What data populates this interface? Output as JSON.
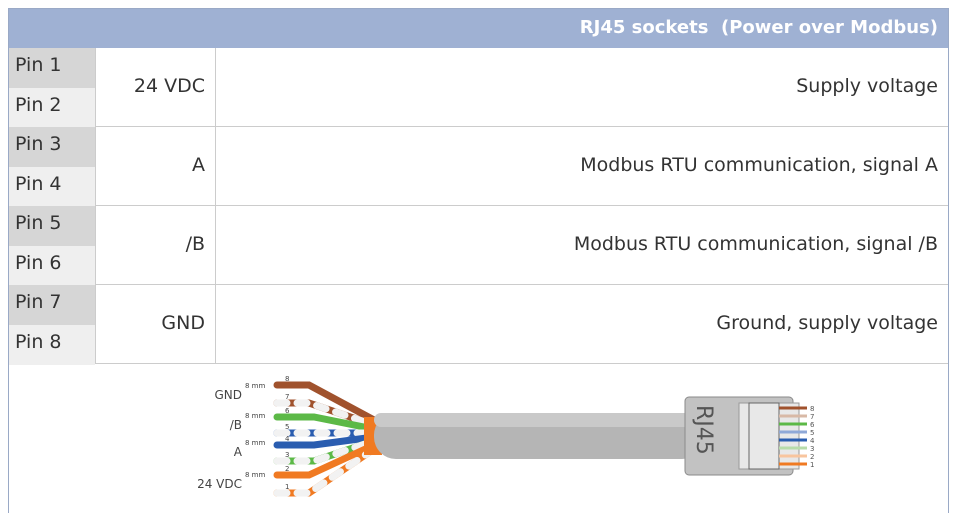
{
  "header": {
    "title": "RJ45 sockets  (Power over Modbus)"
  },
  "table": {
    "rows": [
      {
        "pins": [
          "Pin 1",
          "Pin 2"
        ],
        "signal": "24 VDC",
        "description": "Supply voltage"
      },
      {
        "pins": [
          "Pin 3",
          "Pin 4"
        ],
        "signal": "A",
        "description": "Modbus RTU communication, signal A"
      },
      {
        "pins": [
          "Pin 5",
          "Pin 6"
        ],
        "signal": "/B",
        "description": "Modbus RTU communication, signal /B"
      },
      {
        "pins": [
          "Pin 7",
          "Pin 8"
        ],
        "signal": "GND",
        "description": "Ground, supply voltage"
      }
    ]
  },
  "illustration": {
    "wire_groups": [
      {
        "label": "GND",
        "strip": "8 mm",
        "pins": [
          "8",
          "7"
        ]
      },
      {
        "label": "/B",
        "strip": "8 mm",
        "pins": [
          "6",
          "5"
        ]
      },
      {
        "label": "A",
        "strip": "8 mm",
        "pins": [
          "4",
          "3"
        ]
      },
      {
        "label": "24 VDC",
        "strip": "8 mm",
        "pins": [
          "2",
          "1"
        ]
      }
    ],
    "plug_label": "RJ45",
    "plug_pins": [
      "8",
      "7",
      "6",
      "5",
      "4",
      "3",
      "2",
      "1"
    ]
  }
}
